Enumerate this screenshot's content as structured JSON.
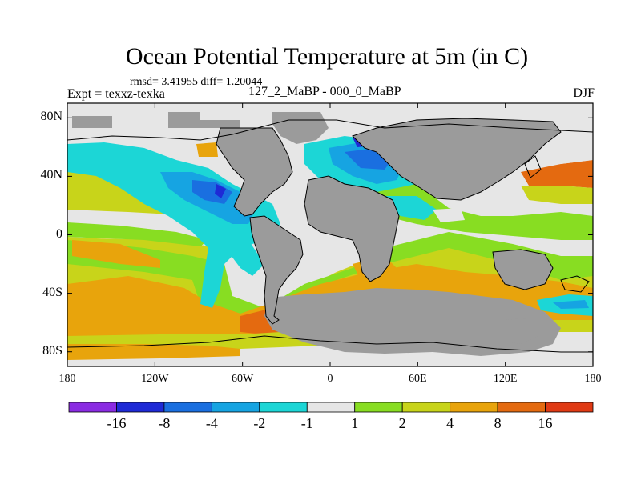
{
  "title": "Ocean Potential Temperature at 5m (in C)",
  "stats": "rmsd= 3.41955 diff= 1.20044",
  "experiment": "Expt = texxz-texka",
  "period": "127_2_MaBP - 000_0_MaBP",
  "season": "DJF",
  "map": {
    "projection": "cylindrical equidistant",
    "lon_range": [
      -180,
      180
    ],
    "lat_range": [
      -90,
      90
    ],
    "y_ticks": [
      {
        "label": "80N",
        "lat": 80
      },
      {
        "label": "40N",
        "lat": 40
      },
      {
        "label": "0",
        "lat": 0
      },
      {
        "label": "40S",
        "lat": -40
      },
      {
        "label": "80S",
        "lat": -80
      }
    ],
    "x_ticks": [
      {
        "label": "180",
        "lon": -180
      },
      {
        "label": "120W",
        "lon": -120
      },
      {
        "label": "60W",
        "lon": -60
      },
      {
        "label": "0",
        "lon": 0
      },
      {
        "label": "60E",
        "lon": 60
      },
      {
        "label": "120E",
        "lon": 120
      },
      {
        "label": "180",
        "lon": 180
      }
    ]
  },
  "colorbar": {
    "colors": [
      "#8a2be2",
      "#1e2ad6",
      "#1a6fe0",
      "#16a4e2",
      "#1cd6d6",
      "#e6e6e6",
      "#88dd22",
      "#c8d41a",
      "#e8a40c",
      "#e46a10",
      "#e03a14"
    ],
    "labels": [
      "-16",
      "-8",
      "-4",
      "-2",
      "-1",
      "1",
      "2",
      "4",
      "8",
      "16"
    ]
  },
  "colors": {
    "land": "#9b9b9b",
    "coast": "#000000",
    "frame": "#000000"
  }
}
